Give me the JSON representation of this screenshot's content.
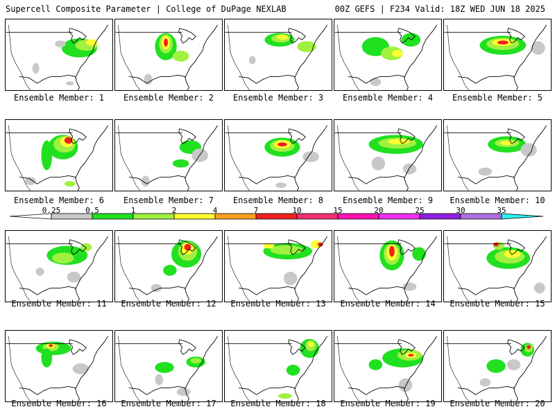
{
  "header": {
    "title_left": "Supercell Composite Parameter | College of DuPage NEXLAB",
    "title_right": "00Z GEFS | F234 Valid: 18Z WED JUN 18 2025"
  },
  "label_prefix": "Ensemble Member:",
  "colorbar": {
    "levels": [
      "0.25",
      "0.5",
      "1",
      "2",
      "4",
      "7",
      "10",
      "15",
      "20",
      "25",
      "30",
      "35"
    ],
    "colors": [
      "#c8c8c8",
      "#20e020",
      "#a0f040",
      "#ffff30",
      "#ffa020",
      "#f02020",
      "#f03070",
      "#ff10b0",
      "#f030f0",
      "#9020e0",
      "#b070e0",
      "#30f0f0"
    ]
  },
  "members": [
    1,
    2,
    3,
    4,
    5,
    6,
    7,
    8,
    9,
    10,
    11,
    12,
    13,
    14,
    15,
    16,
    17,
    18,
    19,
    20
  ],
  "colors": {
    "gray": "#c8c8c8",
    "green": "#20e020",
    "lightgreen": "#a0f040",
    "yellow": "#ffff30",
    "orange": "#ffa020",
    "red": "#f02020"
  }
}
